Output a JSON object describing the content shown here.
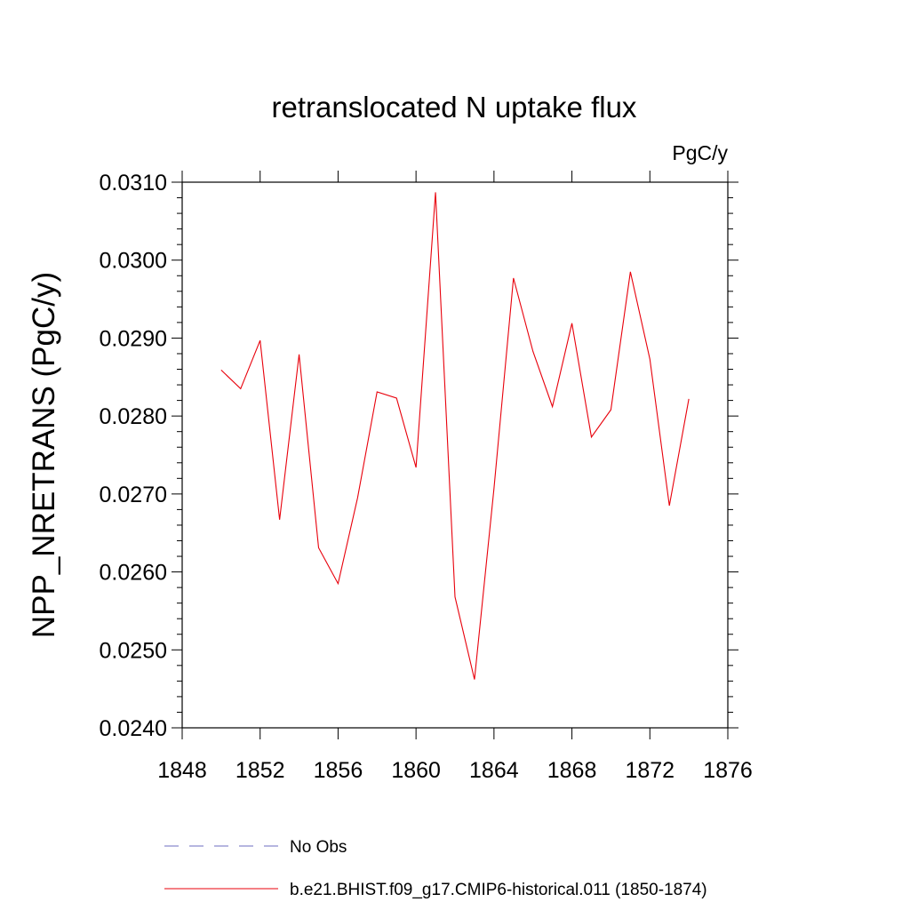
{
  "chart_data": {
    "type": "line",
    "title": "retranslocated N uptake flux",
    "units_label": "PgC/y",
    "ylabel": "NPP_NRETRANS  (PgC/y)",
    "xlabel": "",
    "xlim": [
      1848,
      1876
    ],
    "ylim": [
      0.024,
      0.031
    ],
    "x_ticks": [
      1848,
      1852,
      1856,
      1860,
      1864,
      1868,
      1872,
      1876
    ],
    "x_tick_labels": [
      "1848",
      "1852",
      "1856",
      "1860",
      "1864",
      "1868",
      "1872",
      "1876"
    ],
    "y_ticks": [
      0.024,
      0.025,
      0.026,
      0.027,
      0.028,
      0.029,
      0.03,
      0.031
    ],
    "y_tick_labels": [
      "0.0240",
      "0.0250",
      "0.0260",
      "0.0270",
      "0.0280",
      "0.0290",
      "0.0300",
      "0.0310"
    ],
    "grid": false,
    "legend_position": "bottom",
    "series": [
      {
        "name": "No Obs",
        "color": "#6c6cc0",
        "dash": "dashed",
        "x": [],
        "values": []
      },
      {
        "name": "b.e21.BHIST.f09_g17.CMIP6-historical.011 (1850-1874)",
        "color": "#e8000b",
        "dash": "solid",
        "x": [
          1850,
          1851,
          1852,
          1853,
          1854,
          1855,
          1856,
          1857,
          1858,
          1859,
          1860,
          1861,
          1862,
          1863,
          1864,
          1865,
          1866,
          1867,
          1868,
          1869,
          1870,
          1871,
          1872,
          1873,
          1874
        ],
        "values": [
          0.02859,
          0.02835,
          0.02897,
          0.02667,
          0.02879,
          0.02631,
          0.02585,
          0.02695,
          0.02831,
          0.02823,
          0.02734,
          0.03087,
          0.02568,
          0.02462,
          0.02707,
          0.02977,
          0.02883,
          0.02812,
          0.02919,
          0.02773,
          0.02808,
          0.02985,
          0.02873,
          0.02685,
          0.02822
        ]
      }
    ]
  }
}
